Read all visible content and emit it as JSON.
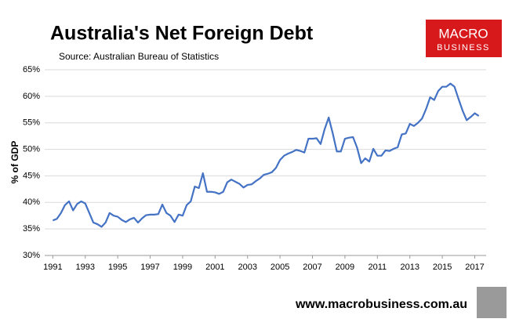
{
  "chart_data": {
    "type": "line",
    "title": "Australia's Net Foreign Debt",
    "subtitle": "Source: Australian Bureau of Statistics",
    "y_label": "% of GDP",
    "logo": [
      "MACRO",
      "BUSINESS"
    ],
    "footer": "www.macrobusiness.com.au",
    "color": "#4472c4",
    "grid": true,
    "x": [
      1991,
      1991.25,
      1991.5,
      1991.75,
      1992,
      1992.25,
      1992.5,
      1992.75,
      1993,
      1993.25,
      1993.5,
      1993.75,
      1994,
      1994.25,
      1994.5,
      1994.75,
      1995,
      1995.25,
      1995.5,
      1995.75,
      1996,
      1996.25,
      1996.5,
      1996.75,
      1997,
      1997.25,
      1997.5,
      1997.75,
      1998,
      1998.25,
      1998.5,
      1998.75,
      1999,
      1999.25,
      1999.5,
      1999.75,
      2000,
      2000.25,
      2000.5,
      2000.75,
      2001,
      2001.25,
      2001.5,
      2001.75,
      2002,
      2002.25,
      2002.5,
      2002.75,
      2003,
      2003.25,
      2003.5,
      2003.75,
      2004,
      2004.25,
      2004.5,
      2004.75,
      2005,
      2005.25,
      2005.5,
      2005.75,
      2006,
      2006.25,
      2006.5,
      2006.75,
      2007,
      2007.25,
      2007.5,
      2007.75,
      2008,
      2008.25,
      2008.5,
      2008.75,
      2009,
      2009.25,
      2009.5,
      2009.75,
      2010,
      2010.25,
      2010.5,
      2010.75,
      2011,
      2011.25,
      2011.5,
      2011.75,
      2012,
      2012.25,
      2012.5,
      2012.75,
      2013,
      2013.25,
      2013.5,
      2013.75,
      2014,
      2014.25,
      2014.5,
      2014.75,
      2015,
      2015.25,
      2015.5,
      2015.75,
      2016,
      2016.25,
      2016.5,
      2016.75,
      2017,
      2017.25
    ],
    "values": [
      36.6,
      36.9,
      38,
      39.5,
      40.2,
      38.5,
      39.7,
      40.2,
      39.8,
      38,
      36.2,
      35.9,
      35.4,
      36.2,
      38,
      37.5,
      37.3,
      36.7,
      36.3,
      36.8,
      37.1,
      36.2,
      37,
      37.6,
      37.7,
      37.7,
      37.8,
      39.6,
      38,
      37.5,
      36.3,
      37.7,
      37.5,
      39.5,
      40.2,
      43,
      42.7,
      45.5,
      42,
      42,
      41.9,
      41.6,
      42,
      43.8,
      44.3,
      43.9,
      43.5,
      42.8,
      43.3,
      43.4,
      44,
      44.5,
      45.2,
      45.4,
      45.7,
      46.5,
      48,
      48.8,
      49.2,
      49.5,
      49.9,
      49.7,
      49.4,
      52,
      52,
      52.1,
      51,
      53.8,
      56,
      53,
      49.6,
      49.6,
      52,
      52.2,
      52.3,
      50.3,
      47.4,
      48.3,
      47.7,
      50.1,
      48.8,
      48.8,
      49.8,
      49.7,
      50.1,
      50.4,
      52.8,
      53,
      54.8,
      54.4,
      55,
      55.8,
      57.6,
      59.8,
      59.3,
      61,
      61.8,
      61.8,
      62.4,
      61.8,
      59.5,
      57.3,
      55.5,
      56.1,
      56.8,
      56.3
    ],
    "xlim": [
      1990.5,
      2017.7
    ],
    "xticks": [
      1991,
      1993,
      1995,
      1997,
      1999,
      2001,
      2003,
      2005,
      2007,
      2009,
      2011,
      2013,
      2015,
      2017
    ],
    "ylim": [
      30,
      65
    ],
    "yticks": [
      {
        "value": 30,
        "label": "30%"
      },
      {
        "value": 35,
        "label": "35%"
      },
      {
        "value": 40,
        "label": "40%"
      },
      {
        "value": 45,
        "label": "45%"
      },
      {
        "value": 50,
        "label": "50%"
      },
      {
        "value": 55,
        "label": "55%"
      },
      {
        "value": 60,
        "label": "60%"
      },
      {
        "value": 65,
        "label": "65%"
      }
    ]
  }
}
